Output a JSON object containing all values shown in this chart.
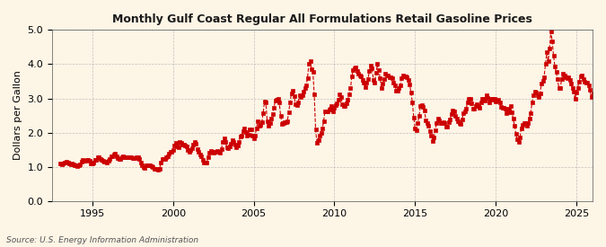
{
  "title": "Monthly Gulf Coast Regular All Formulations Retail Gasoline Prices",
  "ylabel": "Dollars per Gallon",
  "source": "Source: U.S. Energy Information Administration",
  "bg_color": "#fdf5e6",
  "line_color": "#cc0000",
  "ylim": [
    0.0,
    5.0
  ],
  "yticks": [
    0.0,
    1.0,
    2.0,
    3.0,
    4.0,
    5.0
  ],
  "xlim_start": 1992.5,
  "xlim_end": 2026.0,
  "xticks": [
    1995,
    2000,
    2005,
    2010,
    2015,
    2020,
    2025
  ],
  "values": [
    1.09,
    1.07,
    1.1,
    1.11,
    1.13,
    1.15,
    1.11,
    1.09,
    1.08,
    1.1,
    1.08,
    1.05,
    1.05,
    1.03,
    1.04,
    1.08,
    1.15,
    1.19,
    1.17,
    1.18,
    1.2,
    1.2,
    1.17,
    1.09,
    1.1,
    1.12,
    1.19,
    1.21,
    1.28,
    1.29,
    1.24,
    1.21,
    1.17,
    1.15,
    1.14,
    1.11,
    1.17,
    1.23,
    1.3,
    1.32,
    1.37,
    1.39,
    1.32,
    1.26,
    1.24,
    1.24,
    1.28,
    1.3,
    1.28,
    1.28,
    1.29,
    1.28,
    1.27,
    1.27,
    1.26,
    1.25,
    1.26,
    1.27,
    1.27,
    1.22,
    1.13,
    1.04,
    0.98,
    0.97,
    1.04,
    1.05,
    1.05,
    1.05,
    1.01,
    1.0,
    0.95,
    0.94,
    0.93,
    0.9,
    0.94,
    1.13,
    1.22,
    1.24,
    1.24,
    1.27,
    1.3,
    1.38,
    1.43,
    1.44,
    1.5,
    1.62,
    1.7,
    1.6,
    1.58,
    1.72,
    1.71,
    1.65,
    1.65,
    1.61,
    1.6,
    1.48,
    1.43,
    1.5,
    1.54,
    1.65,
    1.72,
    1.67,
    1.52,
    1.45,
    1.37,
    1.3,
    1.21,
    1.13,
    1.11,
    1.13,
    1.27,
    1.42,
    1.47,
    1.43,
    1.42,
    1.43,
    1.44,
    1.47,
    1.45,
    1.4,
    1.52,
    1.73,
    1.83,
    1.72,
    1.56,
    1.55,
    1.6,
    1.67,
    1.77,
    1.74,
    1.65,
    1.56,
    1.63,
    1.74,
    1.89,
    1.9,
    2.03,
    2.11,
    2.01,
    1.92,
    1.95,
    2.09,
    2.09,
    1.9,
    1.84,
    1.92,
    2.11,
    2.34,
    2.2,
    2.23,
    2.3,
    2.57,
    2.92,
    2.87,
    2.34,
    2.19,
    2.29,
    2.4,
    2.55,
    2.73,
    2.93,
    2.96,
    3.0,
    2.87,
    2.49,
    2.26,
    2.27,
    2.31,
    2.3,
    2.33,
    2.6,
    2.87,
    3.15,
    3.22,
    3.06,
    2.84,
    2.81,
    2.87,
    3.1,
    3.03,
    3.08,
    3.2,
    3.31,
    3.37,
    3.6,
    4.01,
    4.09,
    3.86,
    3.78,
    3.11,
    2.1,
    1.7,
    1.79,
    1.91,
    1.98,
    2.11,
    2.34,
    2.63,
    2.62,
    2.61,
    2.68,
    2.71,
    2.78,
    2.62,
    2.72,
    2.8,
    2.85,
    2.95,
    3.11,
    3.03,
    2.82,
    2.78,
    2.77,
    2.85,
    2.96,
    3.11,
    3.31,
    3.64,
    3.83,
    3.87,
    3.91,
    3.79,
    3.73,
    3.67,
    3.64,
    3.53,
    3.45,
    3.32,
    3.45,
    3.57,
    3.81,
    3.97,
    3.89,
    3.55,
    3.47,
    3.75,
    4.0,
    3.83,
    3.59,
    3.3,
    3.44,
    3.57,
    3.73,
    3.66,
    3.66,
    3.62,
    3.63,
    3.58,
    3.46,
    3.39,
    3.23,
    3.22,
    3.3,
    3.37,
    3.59,
    3.67,
    3.65,
    3.65,
    3.62,
    3.53,
    3.42,
    3.16,
    2.88,
    2.44,
    2.12,
    2.08,
    2.29,
    2.49,
    2.79,
    2.8,
    2.75,
    2.65,
    2.36,
    2.28,
    2.19,
    2.05,
    1.9,
    1.75,
    1.87,
    2.08,
    2.27,
    2.4,
    2.36,
    2.27,
    2.29,
    2.3,
    2.27,
    2.18,
    2.17,
    2.3,
    2.38,
    2.53,
    2.65,
    2.61,
    2.5,
    2.41,
    2.33,
    2.28,
    2.24,
    2.39,
    2.58,
    2.63,
    2.69,
    2.89,
    3.0,
    2.98,
    2.86,
    2.69,
    2.7,
    2.79,
    2.83,
    2.77,
    2.73,
    2.87,
    3.0,
    2.98,
    2.93,
    3.09,
    3.01,
    2.87,
    2.98,
    2.97,
    2.98,
    2.99,
    2.9,
    2.94,
    2.96,
    2.87,
    2.75,
    2.73,
    2.73,
    2.71,
    2.56,
    2.59,
    2.71,
    2.78,
    2.6,
    2.4,
    2.2,
    1.97,
    1.8,
    1.74,
    1.85,
    2.12,
    2.22,
    2.27,
    2.29,
    2.21,
    2.27,
    2.4,
    2.58,
    2.87,
    3.1,
    3.2,
    3.17,
    3.1,
    3.04,
    3.15,
    3.44,
    3.5,
    3.63,
    4.01,
    4.34,
    4.1,
    4.46,
    4.95,
    4.68,
    4.25,
    3.92,
    3.77,
    3.56,
    3.3,
    3.3,
    3.56,
    3.71,
    3.68,
    3.61,
    3.59,
    3.61,
    3.55,
    3.43,
    3.31,
    3.2,
    2.98,
    3.18,
    3.31,
    3.49,
    3.64,
    3.66,
    3.56,
    3.49,
    3.47,
    3.47,
    3.37,
    3.25,
    3.05,
    3.07,
    3.15,
    3.17
  ],
  "start_year": 1993,
  "start_month": 1
}
